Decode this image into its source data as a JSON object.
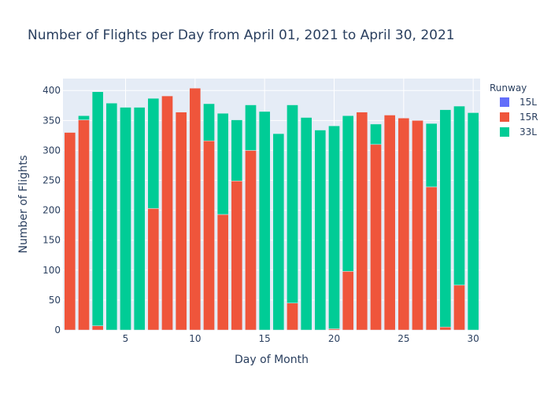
{
  "chart_data": {
    "type": "bar",
    "barmode": "stack",
    "title": "Number of Flights per Day from April 01, 2021 to April 30, 2021",
    "xlabel": "Day of Month",
    "ylabel": "Number of Flights",
    "xlim": [
      0.5,
      30.5
    ],
    "ylim": [
      0,
      420
    ],
    "x_ticks": [
      5,
      10,
      15,
      20,
      25,
      30
    ],
    "y_ticks": [
      0,
      50,
      100,
      150,
      200,
      250,
      300,
      350,
      400
    ],
    "grid": true,
    "legend_title": "Runway",
    "legend_position": "top-right",
    "x": [
      1,
      2,
      3,
      4,
      5,
      6,
      7,
      8,
      9,
      10,
      11,
      12,
      13,
      14,
      15,
      16,
      17,
      18,
      19,
      20,
      21,
      22,
      23,
      24,
      25,
      26,
      27,
      28,
      29,
      30
    ],
    "series": [
      {
        "name": "15L",
        "color": "#636efa",
        "values": [
          0,
          0,
          0,
          0,
          0,
          0,
          0,
          0,
          0,
          0,
          0,
          0,
          0,
          0,
          0,
          0,
          0,
          0,
          0,
          0,
          0,
          0,
          0,
          0,
          0,
          0,
          0,
          0,
          0,
          0
        ]
      },
      {
        "name": "15R",
        "color": "#ef553b",
        "values": [
          330,
          351,
          7,
          0,
          0,
          0,
          203,
          391,
          364,
          404,
          316,
          193,
          249,
          300,
          0,
          0,
          45,
          0,
          0,
          2,
          98,
          364,
          310,
          359,
          354,
          350,
          239,
          5,
          75,
          0
        ]
      },
      {
        "name": "33L",
        "color": "#00cc96",
        "values": [
          0,
          7,
          391,
          379,
          372,
          372,
          184,
          0,
          0,
          0,
          62,
          169,
          102,
          76,
          365,
          328,
          331,
          355,
          334,
          339,
          260,
          0,
          34,
          0,
          0,
          0,
          106,
          363,
          299,
          363
        ]
      }
    ]
  }
}
